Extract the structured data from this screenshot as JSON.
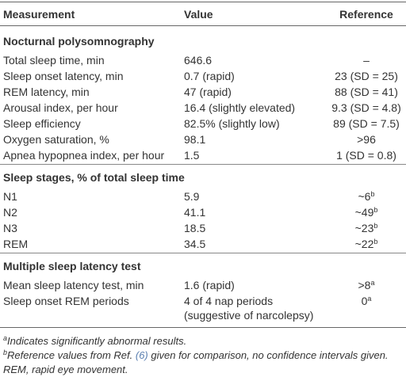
{
  "header": [
    "Measurement",
    "Value",
    "Reference"
  ],
  "sections": [
    {
      "title": "Nocturnal polysomnography",
      "rows": [
        [
          "Total sleep time, min",
          "646.6",
          "–"
        ],
        [
          "Sleep onset latency, min",
          "0.7 (rapid)",
          "23 (SD = 25)"
        ],
        [
          "REM latency, min",
          "47 (rapid)",
          "88 (SD = 41)"
        ],
        [
          "Arousal index, per hour",
          "16.4 (slightly elevated)",
          "9.3 (SD = 4.8)"
        ],
        [
          "Sleep efficiency",
          "82.5% (slightly low)",
          "89 (SD = 7.5)"
        ],
        [
          "Oxygen saturation, %",
          "98.1",
          ">96"
        ],
        [
          "Apnea hypopnea index, per hour",
          "1.5",
          "1 (SD = 0.8)"
        ]
      ]
    },
    {
      "title": "Sleep stages, % of total sleep time",
      "rows": [
        [
          "N1",
          "5.9",
          {
            "text": "~6",
            "sup": "b"
          }
        ],
        [
          "N2",
          "41.1",
          {
            "text": "~49",
            "sup": "b"
          }
        ],
        [
          "N3",
          "18.5",
          {
            "text": "~23",
            "sup": "b"
          }
        ],
        [
          "REM",
          "34.5",
          {
            "text": "~22",
            "sup": "b"
          }
        ]
      ]
    },
    {
      "title": "Multiple sleep latency test",
      "rows": [
        [
          "Mean sleep latency test, min",
          "1.6 (rapid)",
          {
            "text": ">8",
            "sup": "a"
          }
        ],
        [
          "Sleep onset REM periods",
          [
            "4 of 4 nap periods",
            "(suggestive of narcolepsy)"
          ],
          {
            "text": "0",
            "sup": "a"
          }
        ]
      ]
    }
  ],
  "footnotes": [
    {
      "mark": "a",
      "parts": [
        "Indicates significantly abnormal results."
      ]
    },
    {
      "mark": "b",
      "parts": [
        "Reference values from Ref. ",
        "(6)",
        " given for comparison, no confidence intervals given."
      ]
    },
    {
      "parts": [
        "REM, rapid eye movement."
      ]
    }
  ]
}
